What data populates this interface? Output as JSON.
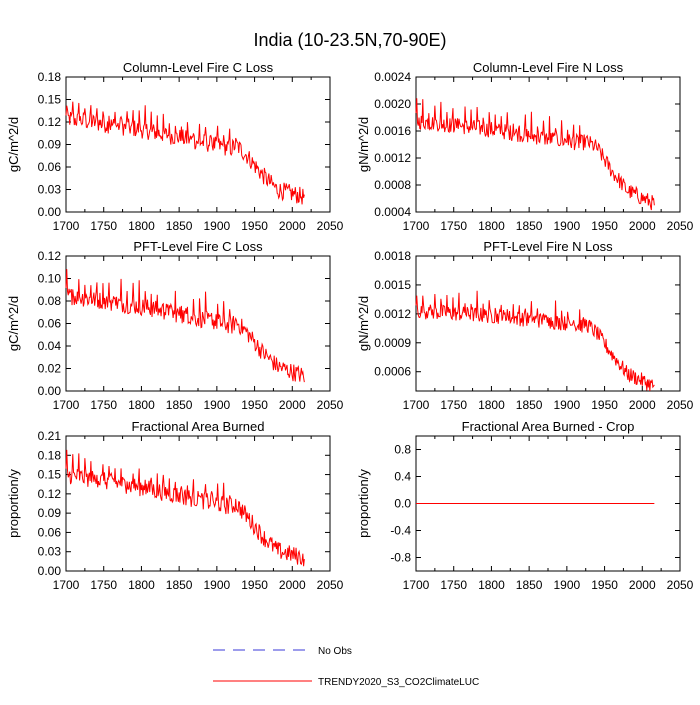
{
  "figure": {
    "title": "India (10-23.5N,70-90E)",
    "colors": {
      "model": "#ff0000",
      "obs": "#3a3ad8",
      "axis": "#000000"
    }
  },
  "legend": {
    "obs_label": "No Obs",
    "model_label": "TRENDY2020_S3_CO2ClimateLUC"
  },
  "chart_data": [
    {
      "type": "line",
      "title": "Column-Level Fire C Loss",
      "xlabel": "",
      "ylabel": "gC/m^2/d",
      "xlim": [
        1700,
        2050
      ],
      "ylim": [
        0.0,
        0.18
      ],
      "xticks": [
        "1700",
        "1750",
        "1800",
        "1850",
        "1900",
        "1950",
        "2000",
        "2050"
      ],
      "yticks": [
        "0.00",
        "0.03",
        "0.06",
        "0.09",
        "0.12",
        "0.15",
        "0.18"
      ],
      "series": [
        {
          "name": "TRENDY2020_S3_CO2ClimateLUC",
          "x_start": 1700,
          "x_end": 2016,
          "shape": "trend",
          "anchors": [
            [
              1700,
              0.125
            ],
            [
              1800,
              0.11
            ],
            [
              1880,
              0.093
            ],
            [
              1920,
              0.085
            ],
            [
              1925,
              0.09
            ],
            [
              1940,
              0.075
            ],
            [
              1960,
              0.05
            ],
            [
              1980,
              0.03
            ],
            [
              2016,
              0.02
            ]
          ],
          "noise": 0.012,
          "peaks": 0.022,
          "peak_end": 1925
        }
      ]
    },
    {
      "type": "line",
      "title": "Column-Level Fire N Loss",
      "xlabel": "",
      "ylabel": "gN/m^2/d",
      "xlim": [
        1700,
        2050
      ],
      "ylim": [
        0.0004,
        0.0024
      ],
      "xticks": [
        "1700",
        "1750",
        "1800",
        "1850",
        "1900",
        "1950",
        "2000",
        "2050"
      ],
      "yticks": [
        "0.0004",
        "0.0008",
        "0.0012",
        "0.0016",
        "0.0020",
        "0.0024"
      ],
      "series": [
        {
          "name": "TRENDY2020_S3_CO2ClimateLUC",
          "x_start": 1700,
          "x_end": 2016,
          "shape": "trend",
          "anchors": [
            [
              1700,
              0.00175
            ],
            [
              1800,
              0.00162
            ],
            [
              1880,
              0.00148
            ],
            [
              1920,
              0.00142
            ],
            [
              1925,
              0.00145
            ],
            [
              1940,
              0.00135
            ],
            [
              1960,
              0.001
            ],
            [
              1980,
              0.00072
            ],
            [
              2016,
              0.00052
            ]
          ],
          "noise": 0.00012,
          "peaks": 0.00025,
          "peak_end": 1925
        }
      ]
    },
    {
      "type": "line",
      "title": "PFT-Level Fire C Loss",
      "xlabel": "",
      "ylabel": "gC/m^2/d",
      "xlim": [
        1700,
        2050
      ],
      "ylim": [
        0.0,
        0.12
      ],
      "xticks": [
        "1700",
        "1750",
        "1800",
        "1850",
        "1900",
        "1950",
        "2000",
        "2050"
      ],
      "yticks": [
        "0.00",
        "0.02",
        "0.04",
        "0.06",
        "0.08",
        "0.10",
        "0.12"
      ],
      "series": [
        {
          "name": "TRENDY2020_S3_CO2ClimateLUC",
          "x_start": 1700,
          "x_end": 2016,
          "shape": "trend",
          "anchors": [
            [
              1700,
              0.085
            ],
            [
              1800,
              0.075
            ],
            [
              1880,
              0.064
            ],
            [
              1920,
              0.058
            ],
            [
              1925,
              0.062
            ],
            [
              1940,
              0.052
            ],
            [
              1960,
              0.035
            ],
            [
              1980,
              0.022
            ],
            [
              2016,
              0.013
            ]
          ],
          "noise": 0.008,
          "peaks": 0.016,
          "peak_end": 1925
        }
      ]
    },
    {
      "type": "line",
      "title": "PFT-Level Fire N Loss",
      "xlabel": "",
      "ylabel": "gN/m^2/d",
      "xlim": [
        1700,
        2050
      ],
      "ylim": [
        0.0004,
        0.0018
      ],
      "xticks": [
        "1700",
        "1750",
        "1800",
        "1850",
        "1900",
        "1950",
        "2000",
        "2050"
      ],
      "yticks": [
        "0.0006",
        "0.0009",
        "0.0012",
        "0.0015",
        "0.0018"
      ],
      "series": [
        {
          "name": "TRENDY2020_S3_CO2ClimateLUC",
          "x_start": 1700,
          "x_end": 2016,
          "shape": "trend",
          "anchors": [
            [
              1700,
              0.00123
            ],
            [
              1800,
              0.00118
            ],
            [
              1880,
              0.00112
            ],
            [
              1920,
              0.00108
            ],
            [
              1925,
              0.0011
            ],
            [
              1940,
              0.001
            ],
            [
              1960,
              0.00078
            ],
            [
              1980,
              0.00058
            ],
            [
              2016,
              0.00045
            ]
          ],
          "noise": 8e-05,
          "peaks": 0.00017,
          "peak_end": 1925
        }
      ]
    },
    {
      "type": "line",
      "title": "Fractional Area Burned",
      "xlabel": "",
      "ylabel": "proportion/y",
      "xlim": [
        1700,
        2050
      ],
      "ylim": [
        0.0,
        0.21
      ],
      "xticks": [
        "1700",
        "1750",
        "1800",
        "1850",
        "1900",
        "1950",
        "2000",
        "2050"
      ],
      "yticks": [
        "0.00",
        "0.03",
        "0.06",
        "0.09",
        "0.12",
        "0.15",
        "0.18",
        "0.21"
      ],
      "series": [
        {
          "name": "TRENDY2020_S3_CO2ClimateLUC",
          "x_start": 1700,
          "x_end": 2016,
          "shape": "trend",
          "anchors": [
            [
              1700,
              0.15
            ],
            [
              1800,
              0.13
            ],
            [
              1880,
              0.11
            ],
            [
              1920,
              0.1
            ],
            [
              1925,
              0.105
            ],
            [
              1940,
              0.085
            ],
            [
              1960,
              0.055
            ],
            [
              1980,
              0.032
            ],
            [
              2016,
              0.02
            ]
          ],
          "noise": 0.014,
          "peaks": 0.027,
          "peak_end": 1925
        }
      ]
    },
    {
      "type": "line",
      "title": "Fractional Area Burned - Crop",
      "xlabel": "",
      "ylabel": "proportion/y",
      "xlim": [
        1700,
        2050
      ],
      "ylim": [
        -1.0,
        1.0
      ],
      "xticks": [
        "1700",
        "1750",
        "1800",
        "1850",
        "1900",
        "1950",
        "2000",
        "2050"
      ],
      "yticks": [
        "-0.8",
        "-0.4",
        "0.0",
        "0.4",
        "0.8"
      ],
      "series": [
        {
          "name": "TRENDY2020_S3_CO2ClimateLUC",
          "x_start": 1700,
          "x_end": 2016,
          "shape": "flat",
          "value": 0.0
        }
      ]
    }
  ]
}
